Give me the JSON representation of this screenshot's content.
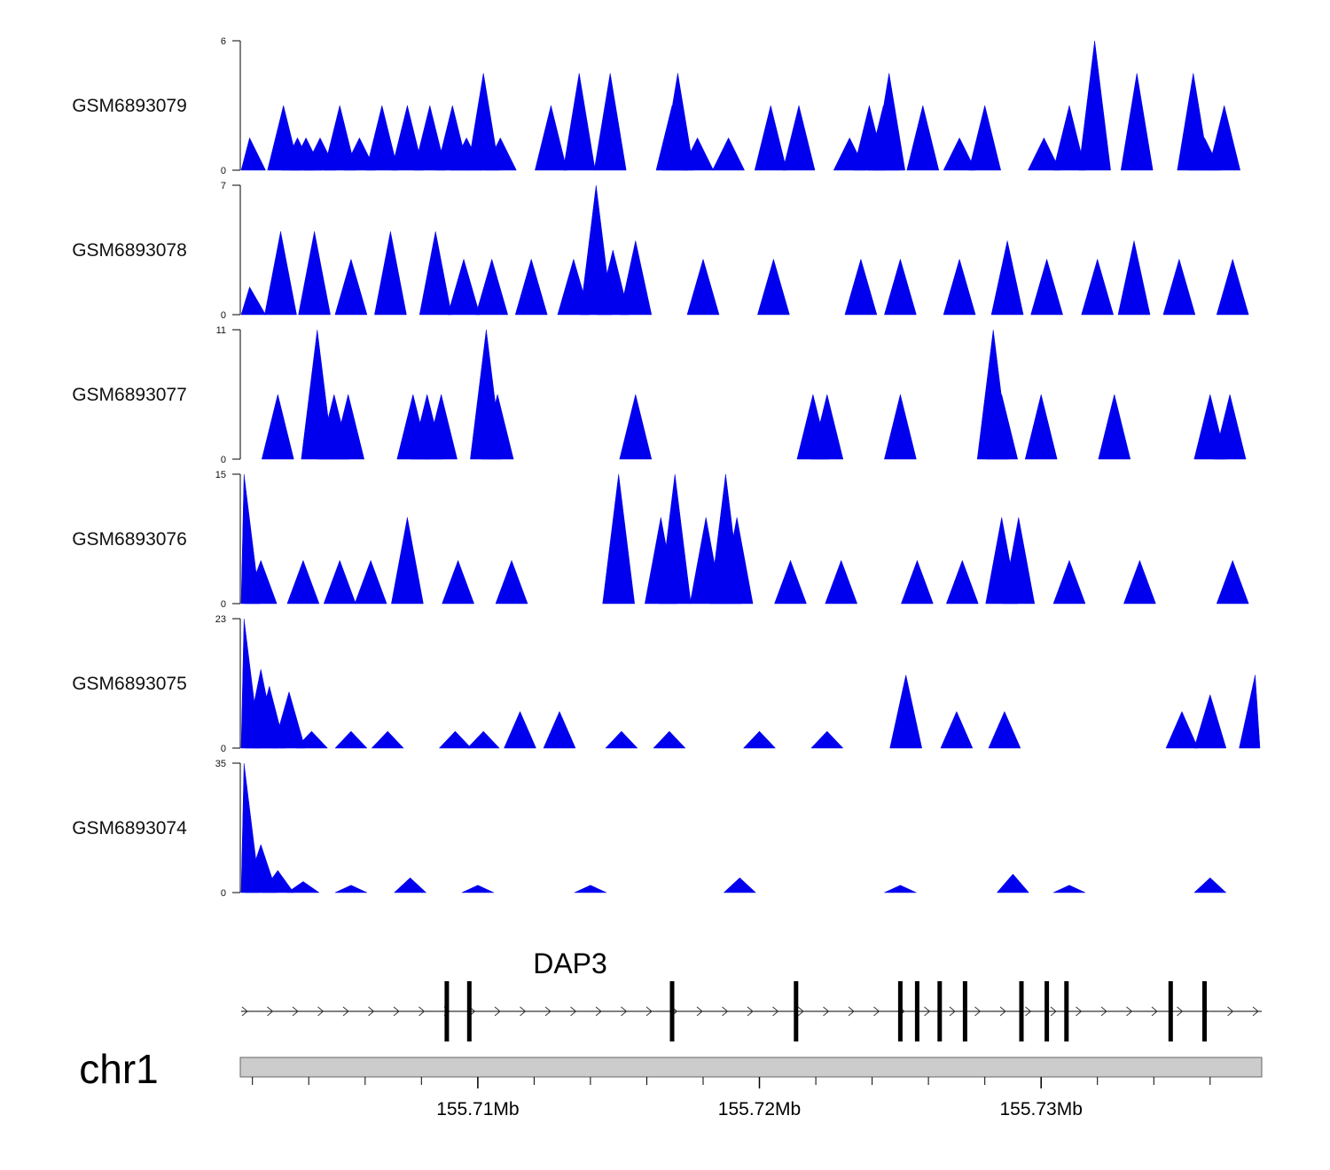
{
  "chart_data": {
    "type": "area",
    "chromosome": "chr1",
    "x_range_mb": [
      155.7016,
      155.7378
    ],
    "colors": {
      "coverage": "#0000ee",
      "ideogram": "#cccccc",
      "gene": "#000000"
    },
    "tracks": [
      {
        "name": "GSM6893079",
        "ymax": 6,
        "ymin_label": "0",
        "ymax_label": "6",
        "profile": [
          [
            155.7019,
            1.5
          ],
          [
            155.7031,
            3
          ],
          [
            155.7036,
            1.5
          ],
          [
            155.7039,
            1.5
          ],
          [
            155.7044,
            1.5
          ],
          [
            155.7051,
            3
          ],
          [
            155.7058,
            1.5
          ],
          [
            155.7066,
            3
          ],
          [
            155.7075,
            3
          ],
          [
            155.7083,
            3
          ],
          [
            155.7091,
            3
          ],
          [
            155.7096,
            1.5
          ],
          [
            155.7102,
            4.5
          ],
          [
            155.7108,
            1.5
          ],
          [
            155.7126,
            3
          ],
          [
            155.7136,
            4.5
          ],
          [
            155.7147,
            4.5
          ],
          [
            155.7169,
            3
          ],
          [
            155.7171,
            4.5
          ],
          [
            155.7178,
            1.5
          ],
          [
            155.7189,
            1.5
          ],
          [
            155.7204,
            3
          ],
          [
            155.7214,
            3
          ],
          [
            155.7232,
            1.5
          ],
          [
            155.7239,
            3
          ],
          [
            155.7244,
            3
          ],
          [
            155.7246,
            4.5
          ],
          [
            155.7258,
            3
          ],
          [
            155.7271,
            1.5
          ],
          [
            155.728,
            3
          ],
          [
            155.7301,
            1.5
          ],
          [
            155.731,
            3
          ],
          [
            155.7319,
            6
          ],
          [
            155.7334,
            4.5
          ],
          [
            155.7354,
            4.5
          ],
          [
            155.7358,
            1.5
          ],
          [
            155.7365,
            3
          ]
        ]
      },
      {
        "name": "GSM6893078",
        "ymax": 7,
        "ymin_label": "0",
        "ymax_label": "7",
        "profile": [
          [
            155.7019,
            1.5
          ],
          [
            155.703,
            4.5
          ],
          [
            155.7042,
            4.5
          ],
          [
            155.7055,
            3
          ],
          [
            155.7069,
            4.5
          ],
          [
            155.7085,
            4.5
          ],
          [
            155.7095,
            3
          ],
          [
            155.7105,
            3
          ],
          [
            155.7119,
            3
          ],
          [
            155.7134,
            3
          ],
          [
            155.7142,
            7
          ],
          [
            155.7148,
            3.5
          ],
          [
            155.7156,
            4
          ],
          [
            155.718,
            3
          ],
          [
            155.7205,
            3
          ],
          [
            155.7236,
            3
          ],
          [
            155.725,
            3
          ],
          [
            155.7271,
            3
          ],
          [
            155.7288,
            4
          ],
          [
            155.7302,
            3
          ],
          [
            155.732,
            3
          ],
          [
            155.7333,
            4
          ],
          [
            155.7349,
            3
          ],
          [
            155.7368,
            3
          ]
        ]
      },
      {
        "name": "GSM6893077",
        "ymax": 11,
        "ymin_label": "0",
        "ymax_label": "11",
        "profile": [
          [
            155.7029,
            5.5
          ],
          [
            155.7043,
            11
          ],
          [
            155.7049,
            5.5
          ],
          [
            155.7054,
            5.5
          ],
          [
            155.7077,
            5.5
          ],
          [
            155.7082,
            5.5
          ],
          [
            155.7087,
            5.5
          ],
          [
            155.7103,
            11
          ],
          [
            155.7107,
            5.5
          ],
          [
            155.7156,
            5.5
          ],
          [
            155.7219,
            5.5
          ],
          [
            155.7224,
            5.5
          ],
          [
            155.725,
            5.5
          ],
          [
            155.7283,
            11
          ],
          [
            155.7286,
            5.5
          ],
          [
            155.73,
            5.5
          ],
          [
            155.7326,
            5.5
          ],
          [
            155.736,
            5.5
          ],
          [
            155.7367,
            5.5
          ]
        ]
      },
      {
        "name": "GSM6893076",
        "ymax": 15,
        "ymin_label": "0",
        "ymax_label": "15",
        "profile": [
          [
            155.7017,
            15
          ],
          [
            155.7023,
            5
          ],
          [
            155.7038,
            5
          ],
          [
            155.7051,
            5
          ],
          [
            155.7062,
            5
          ],
          [
            155.7075,
            10
          ],
          [
            155.7093,
            5
          ],
          [
            155.7112,
            5
          ],
          [
            155.715,
            15
          ],
          [
            155.7165,
            10
          ],
          [
            155.717,
            15
          ],
          [
            155.7181,
            10
          ],
          [
            155.7188,
            15
          ],
          [
            155.7192,
            10
          ],
          [
            155.7211,
            5
          ],
          [
            155.7229,
            5
          ],
          [
            155.7256,
            5
          ],
          [
            155.7272,
            5
          ],
          [
            155.7286,
            10
          ],
          [
            155.7292,
            10
          ],
          [
            155.731,
            5
          ],
          [
            155.7335,
            5
          ],
          [
            155.7368,
            5
          ]
        ]
      },
      {
        "name": "GSM6893075",
        "ymax": 23,
        "ymin_label": "0",
        "ymax_label": "23",
        "profile": [
          [
            155.7017,
            23
          ],
          [
            155.7023,
            14
          ],
          [
            155.7026,
            11
          ],
          [
            155.7033,
            10
          ],
          [
            155.7041,
            3
          ],
          [
            155.7055,
            3
          ],
          [
            155.7068,
            3
          ],
          [
            155.7092,
            3
          ],
          [
            155.7102,
            3
          ],
          [
            155.7115,
            6.5
          ],
          [
            155.7129,
            6.5
          ],
          [
            155.7151,
            3
          ],
          [
            155.7168,
            3
          ],
          [
            155.72,
            3
          ],
          [
            155.7224,
            3
          ],
          [
            155.7252,
            13
          ],
          [
            155.727,
            6.5
          ],
          [
            155.7287,
            6.5
          ],
          [
            155.735,
            6.5
          ],
          [
            155.736,
            9.5
          ],
          [
            155.7376,
            13
          ]
        ]
      },
      {
        "name": "GSM6893074",
        "ymax": 35,
        "ymin_label": "0",
        "ymax_label": "35",
        "profile": [
          [
            155.7017,
            35
          ],
          [
            155.7023,
            13
          ],
          [
            155.7029,
            6
          ],
          [
            155.7038,
            3
          ],
          [
            155.7055,
            2
          ],
          [
            155.7076,
            4
          ],
          [
            155.71,
            2
          ],
          [
            155.714,
            2
          ],
          [
            155.7193,
            4
          ],
          [
            155.725,
            2
          ],
          [
            155.729,
            5
          ],
          [
            155.731,
            2
          ],
          [
            155.736,
            4
          ]
        ]
      }
    ],
    "gene": {
      "name": "DAP3",
      "strand": "+",
      "start_mb": 155.7016,
      "end_mb": 155.7378,
      "exons_mb": [
        155.7089,
        155.7097,
        155.7169,
        155.7213,
        155.725,
        155.7256,
        155.7264,
        155.7273,
        155.7293,
        155.7302,
        155.7309,
        155.7346,
        155.7358
      ]
    },
    "x_ticks": [
      155.71,
      155.72,
      155.73
    ],
    "x_tick_labels": [
      "155.71Mb",
      "155.72Mb",
      "155.73Mb"
    ],
    "minor_tick_step_mb": 0.002
  }
}
